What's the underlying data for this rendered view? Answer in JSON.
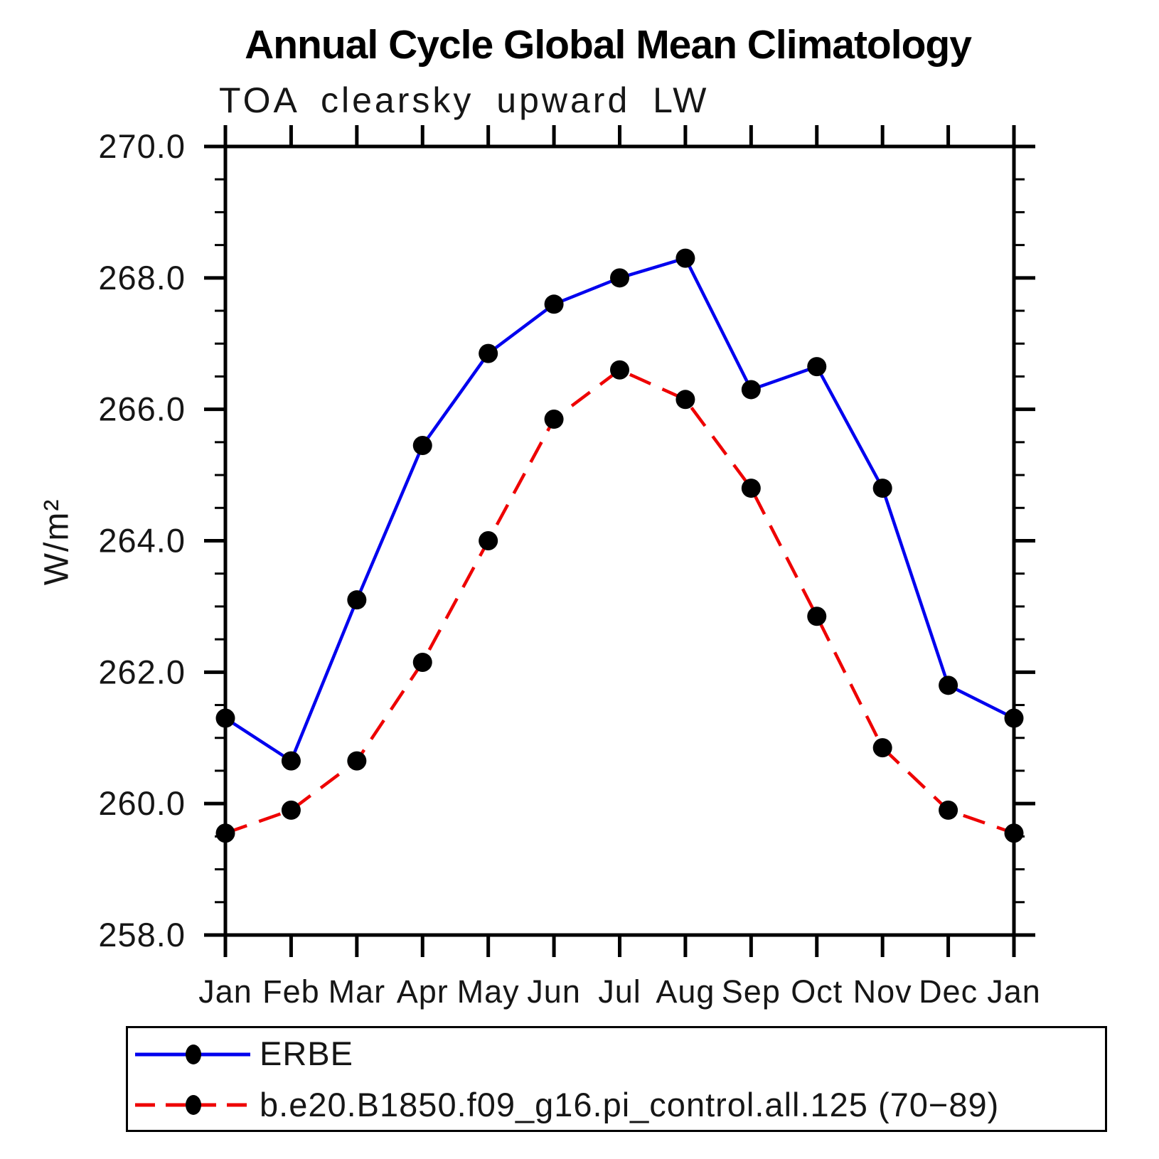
{
  "title": "Annual Cycle Global Mean Climatology",
  "subtitle": "TOA clearsky upward LW",
  "y_axis": {
    "label": "W/m²",
    "tick_labels": [
      "270.0",
      "268.0",
      "266.0",
      "264.0",
      "262.0",
      "260.0",
      "258.0"
    ],
    "min": 258.0,
    "max": 270.0,
    "major_step": 2.0,
    "minor_step": 0.5
  },
  "x_axis": {
    "tick_labels": [
      "Jan",
      "Feb",
      "Mar",
      "Apr",
      "May",
      "Jun",
      "Jul",
      "Aug",
      "Sep",
      "Oct",
      "Nov",
      "Dec",
      "Jan"
    ]
  },
  "legend": {
    "items": [
      {
        "label": "ERBE",
        "color": "#0000ee",
        "line_style": "solid",
        "marker": "black-dot"
      },
      {
        "label": "b.e20.B1850.f09_g16.pi_control.all.125 (70−89)",
        "color": "#ee0000",
        "line_style": "dashed",
        "marker": "black-dot"
      }
    ]
  },
  "chart_data": {
    "type": "line",
    "title": "Annual Cycle Global Mean Climatology",
    "subtitle": "TOA clearsky upward LW",
    "ylabel": "W/m²",
    "ylim": [
      258.0,
      270.0
    ],
    "grid": false,
    "legend_position": "bottom",
    "x_categories": [
      "Jan",
      "Feb",
      "Mar",
      "Apr",
      "May",
      "Jun",
      "Jul",
      "Aug",
      "Sep",
      "Oct",
      "Nov",
      "Dec",
      "Jan"
    ],
    "series": [
      {
        "name": "ERBE",
        "color": "#0000ee",
        "line_style": "solid",
        "marker_color": "#000000",
        "values": [
          261.3,
          260.65,
          263.1,
          265.45,
          266.85,
          267.6,
          268.0,
          268.3,
          266.3,
          266.65,
          264.8,
          261.8,
          261.3
        ]
      },
      {
        "name": "b.e20.B1850.f09_g16.pi_control.all.125 (70−89)",
        "color": "#ee0000",
        "line_style": "dashed",
        "marker_color": "#000000",
        "values": [
          259.55,
          259.9,
          260.65,
          262.15,
          264.0,
          265.85,
          266.6,
          266.15,
          264.8,
          262.85,
          260.85,
          259.9,
          259.55
        ]
      }
    ]
  }
}
